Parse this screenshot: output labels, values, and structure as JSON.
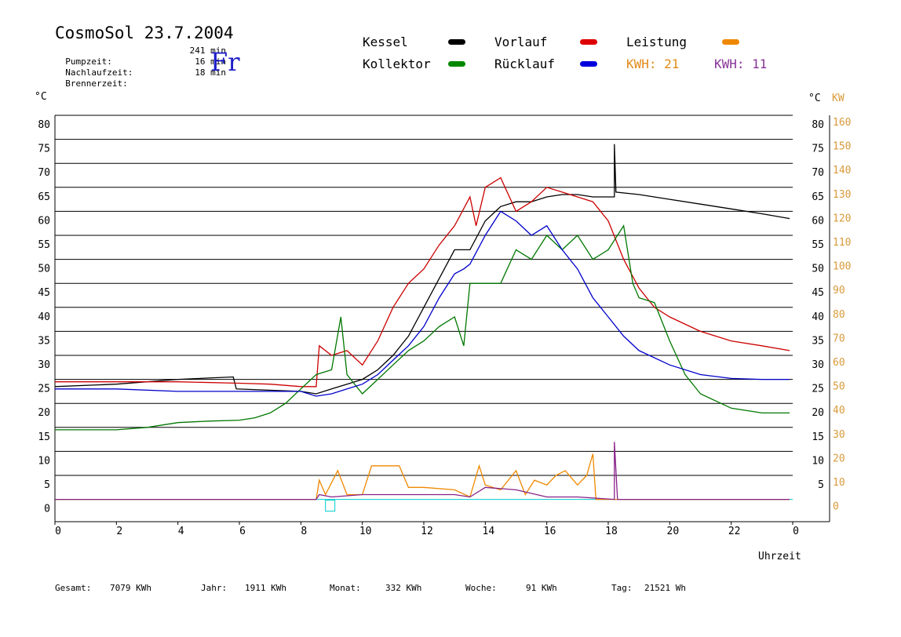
{
  "header": {
    "title": "CosmoSol 23.7.2004",
    "day": "Fr",
    "info": [
      {
        "label": "Pumpzeit:",
        "value": "241 min"
      },
      {
        "label": "Nachlaufzeit:",
        "value": "16 min"
      },
      {
        "label": "Brennerzeit:",
        "value": "18 min"
      }
    ]
  },
  "legend": {
    "kessel": "Kessel",
    "vorlauf": "Vorlauf",
    "leistung": "Leistung",
    "kollektor": "Kollektor",
    "ruecklauf": "Rücklauf",
    "kwh1": "KWH: 21",
    "kwh2": "KWH: 11"
  },
  "axes": {
    "left_unit": "°C",
    "right_unit": "°C",
    "kw_unit": "KW",
    "x_label": "Uhrzeit"
  },
  "footer": {
    "gesamt_label": "Gesamt:",
    "gesamt_value": "7079 KWh",
    "jahr_label": "Jahr:",
    "jahr_value": "1911 KWh",
    "monat_label": "Monat:",
    "monat_value": "332 KWh",
    "woche_label": "Woche:",
    "woche_value": "91 KWh",
    "tag_label": "Tag:",
    "tag_value": "21521 Wh"
  },
  "colors": {
    "kessel": "#000000",
    "vorlauf": "#cc0000",
    "kollektor": "#007700",
    "ruecklauf": "#0000cc",
    "leistung": "#ee8800",
    "leistung2": "#882288",
    "baseline": "#00cccc",
    "kw_axis": "#d99a3a"
  },
  "chart_data": {
    "type": "line",
    "title": "CosmoSol 23.7.2004",
    "xlabel": "Uhrzeit",
    "ylabel": "°C",
    "y2label": "KW",
    "xlim": [
      0,
      24
    ],
    "ylim": [
      -5,
      80
    ],
    "y2lim": [
      0,
      160
    ],
    "x_ticks": [
      "0",
      "2",
      "4",
      "6",
      "8",
      "10",
      "12",
      "14",
      "16",
      "18",
      "20",
      "22",
      "0"
    ],
    "y_ticks_left": [
      "80",
      "75",
      "70",
      "65",
      "60",
      "55",
      "50",
      "45",
      "40",
      "35",
      "30",
      "25",
      "20",
      "15",
      "10",
      "5",
      "0"
    ],
    "y_ticks_right": [
      "80",
      "75",
      "70",
      "65",
      "60",
      "55",
      "50",
      "45",
      "40",
      "35",
      "30",
      "25",
      "20",
      "15",
      "10",
      "5"
    ],
    "y2_ticks": [
      "160",
      "150",
      "140",
      "130",
      "120",
      "110",
      "100",
      "90",
      "80",
      "70",
      "60",
      "50",
      "40",
      "30",
      "20",
      "10",
      "0"
    ],
    "grid": true,
    "series": [
      {
        "name": "Kessel",
        "color": "#000000",
        "points": [
          [
            0,
            23.5
          ],
          [
            2,
            24
          ],
          [
            4,
            25
          ],
          [
            5.8,
            25.5
          ],
          [
            5.9,
            23
          ],
          [
            8,
            22.5
          ],
          [
            8.5,
            22
          ],
          [
            9,
            23
          ],
          [
            9.5,
            24
          ],
          [
            10,
            25
          ],
          [
            10.5,
            27
          ],
          [
            11,
            30
          ],
          [
            11.5,
            34
          ],
          [
            12,
            40
          ],
          [
            12.5,
            46
          ],
          [
            13,
            52
          ],
          [
            13.5,
            52
          ],
          [
            14,
            58
          ],
          [
            14.5,
            61
          ],
          [
            15,
            62
          ],
          [
            15.5,
            62
          ],
          [
            16,
            63
          ],
          [
            16.5,
            63.5
          ],
          [
            17,
            63.5
          ],
          [
            17.5,
            63
          ],
          [
            18,
            63
          ],
          [
            18.2,
            63
          ],
          [
            18.2,
            74
          ],
          [
            18.25,
            64
          ],
          [
            19,
            63.5
          ],
          [
            20,
            62.5
          ],
          [
            21,
            61.5
          ],
          [
            22,
            60.5
          ],
          [
            23,
            59.5
          ],
          [
            23.9,
            58.5
          ]
        ]
      },
      {
        "name": "Vorlauf",
        "color": "#cc0000",
        "points": [
          [
            0,
            24.5
          ],
          [
            2,
            24.5
          ],
          [
            4,
            24.5
          ],
          [
            6,
            24.2
          ],
          [
            7,
            24
          ],
          [
            8,
            23.5
          ],
          [
            8.5,
            23.5
          ],
          [
            8.6,
            32
          ],
          [
            9,
            30
          ],
          [
            9.5,
            31
          ],
          [
            10,
            28
          ],
          [
            10.5,
            33
          ],
          [
            11,
            40
          ],
          [
            11.5,
            45
          ],
          [
            12,
            48
          ],
          [
            12.5,
            53
          ],
          [
            13,
            57
          ],
          [
            13.5,
            63
          ],
          [
            13.7,
            57
          ],
          [
            14,
            65
          ],
          [
            14.5,
            67
          ],
          [
            15,
            60
          ],
          [
            15.5,
            62
          ],
          [
            16,
            65
          ],
          [
            16.5,
            64
          ],
          [
            17,
            63
          ],
          [
            17.5,
            62
          ],
          [
            18,
            58
          ],
          [
            18.5,
            50
          ],
          [
            19,
            44
          ],
          [
            19.5,
            40
          ],
          [
            20,
            38
          ],
          [
            21,
            35
          ],
          [
            22,
            33
          ],
          [
            23,
            32
          ],
          [
            23.9,
            31
          ]
        ]
      },
      {
        "name": "Kollektor",
        "color": "#007700",
        "points": [
          [
            0,
            14.5
          ],
          [
            1,
            14.5
          ],
          [
            2,
            14.5
          ],
          [
            3,
            15
          ],
          [
            4,
            16
          ],
          [
            5,
            16.3
          ],
          [
            6,
            16.5
          ],
          [
            6.5,
            17
          ],
          [
            7,
            18
          ],
          [
            7.5,
            20
          ],
          [
            8,
            23
          ],
          [
            8.5,
            26
          ],
          [
            9,
            27
          ],
          [
            9.3,
            38
          ],
          [
            9.5,
            26
          ],
          [
            10,
            22
          ],
          [
            10.5,
            25
          ],
          [
            11,
            28
          ],
          [
            11.5,
            31
          ],
          [
            12,
            33
          ],
          [
            12.5,
            36
          ],
          [
            13,
            38
          ],
          [
            13.3,
            32
          ],
          [
            13.5,
            45
          ],
          [
            14,
            45
          ],
          [
            14.5,
            45
          ],
          [
            15,
            52
          ],
          [
            15.5,
            50
          ],
          [
            16,
            55
          ],
          [
            16.5,
            52
          ],
          [
            17,
            55
          ],
          [
            17.5,
            50
          ],
          [
            18,
            52
          ],
          [
            18.5,
            57
          ],
          [
            18.8,
            45
          ],
          [
            19,
            42
          ],
          [
            19.5,
            41
          ],
          [
            20,
            33
          ],
          [
            20.5,
            26
          ],
          [
            21,
            22
          ],
          [
            22,
            19
          ],
          [
            23,
            18
          ],
          [
            23.9,
            18
          ]
        ]
      },
      {
        "name": "Rücklauf",
        "color": "#0000cc",
        "points": [
          [
            0,
            23
          ],
          [
            2,
            23
          ],
          [
            4,
            22.5
          ],
          [
            6,
            22.5
          ],
          [
            7,
            22.5
          ],
          [
            8,
            22.5
          ],
          [
            8.5,
            21.5
          ],
          [
            9,
            22
          ],
          [
            9.5,
            23
          ],
          [
            10,
            24
          ],
          [
            10.5,
            26
          ],
          [
            11,
            29
          ],
          [
            11.5,
            32
          ],
          [
            12,
            36
          ],
          [
            12.5,
            42
          ],
          [
            13,
            47
          ],
          [
            13.3,
            48
          ],
          [
            13.5,
            49
          ],
          [
            14,
            55
          ],
          [
            14.5,
            60
          ],
          [
            15,
            58
          ],
          [
            15.5,
            55
          ],
          [
            16,
            57
          ],
          [
            16.5,
            52
          ],
          [
            17,
            48
          ],
          [
            17.5,
            42
          ],
          [
            18,
            38
          ],
          [
            18.5,
            34
          ],
          [
            19,
            31
          ],
          [
            20,
            28
          ],
          [
            21,
            26
          ],
          [
            22,
            25.2
          ],
          [
            23,
            25
          ],
          [
            23.9,
            25
          ]
        ]
      },
      {
        "name": "Leistung",
        "color": "#ee8800",
        "points": [
          [
            0,
            0
          ],
          [
            8.5,
            0
          ],
          [
            8.6,
            4
          ],
          [
            8.8,
            1
          ],
          [
            9.2,
            6
          ],
          [
            9.5,
            1
          ],
          [
            10,
            1
          ],
          [
            10.3,
            7
          ],
          [
            10.6,
            7
          ],
          [
            10.9,
            7
          ],
          [
            11.2,
            7
          ],
          [
            11.5,
            2.5
          ],
          [
            12,
            2.5
          ],
          [
            13,
            2
          ],
          [
            13.5,
            0.5
          ],
          [
            13.8,
            7
          ],
          [
            14,
            3
          ],
          [
            14.5,
            2
          ],
          [
            15,
            6
          ],
          [
            15.3,
            1
          ],
          [
            15.6,
            4
          ],
          [
            16,
            3
          ],
          [
            16.3,
            5
          ],
          [
            16.6,
            6
          ],
          [
            17,
            3
          ],
          [
            17.3,
            5
          ],
          [
            17.5,
            9.5
          ],
          [
            17.6,
            0
          ],
          [
            23.9,
            0
          ]
        ]
      },
      {
        "name": "Leistung KWH: 11",
        "color": "#882288",
        "points": [
          [
            0,
            0
          ],
          [
            8.5,
            0
          ],
          [
            8.6,
            1
          ],
          [
            9,
            0.5
          ],
          [
            10,
            1
          ],
          [
            11,
            1
          ],
          [
            12,
            1
          ],
          [
            13,
            1
          ],
          [
            13.5,
            0.5
          ],
          [
            14,
            2.5
          ],
          [
            15,
            2
          ],
          [
            16,
            0.5
          ],
          [
            17,
            0.5
          ],
          [
            18.2,
            0
          ],
          [
            18.2,
            12
          ],
          [
            18.3,
            0
          ],
          [
            23.9,
            0
          ]
        ]
      }
    ]
  }
}
